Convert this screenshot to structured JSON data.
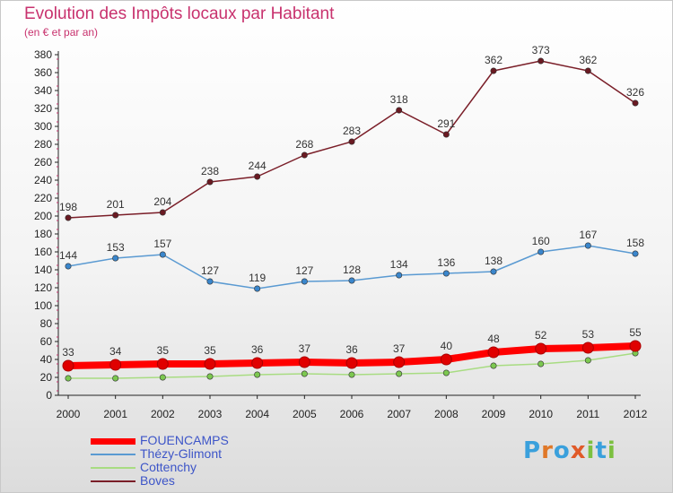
{
  "title": "Evolution des Impôts locaux par Habitant",
  "subtitle": "(en € et par an)",
  "logo": {
    "text": "Proxiti",
    "letters": [
      {
        "ch": "P",
        "color": "#3aa0dc"
      },
      {
        "ch": "r",
        "color": "#e07828"
      },
      {
        "ch": "o",
        "color": "#3aa0dc"
      },
      {
        "ch": "x",
        "color": "#e05a28"
      },
      {
        "ch": "i",
        "color": "#7cc040"
      },
      {
        "ch": "t",
        "color": "#3aa0dc"
      },
      {
        "ch": "i",
        "color": "#7cc040"
      }
    ]
  },
  "chart_data": {
    "type": "line",
    "x": [
      "2000",
      "2001",
      "2002",
      "2003",
      "2004",
      "2005",
      "2006",
      "2007",
      "2008",
      "2009",
      "2010",
      "2011",
      "2012"
    ],
    "ylim": [
      0,
      380
    ],
    "yticks": [
      0,
      20,
      40,
      60,
      80,
      100,
      120,
      140,
      160,
      180,
      200,
      220,
      240,
      260,
      280,
      300,
      320,
      340,
      360,
      380
    ],
    "grid": false,
    "legend_position": "bottom-left",
    "series": [
      {
        "name": "Boves",
        "color": "#7a1e28",
        "marker": "#6a1a22",
        "values": [
          198,
          201,
          204,
          238,
          244,
          268,
          283,
          318,
          291,
          362,
          373,
          362,
          326
        ],
        "show_labels": true
      },
      {
        "name": "Thézy-Glimont",
        "color": "#5a9ad2",
        "marker": "#3a86cc",
        "values": [
          144,
          153,
          157,
          127,
          119,
          127,
          128,
          134,
          136,
          138,
          160,
          167,
          158
        ],
        "show_labels": true
      },
      {
        "name": "Cottenchy",
        "color": "#a8dc82",
        "marker": "#7cc850",
        "values": [
          19,
          19,
          20,
          21,
          23,
          24,
          23,
          24,
          25,
          33,
          35,
          39,
          47
        ],
        "show_labels": false
      },
      {
        "name": "FOUENCAMPS",
        "color": "#ff0000",
        "marker": "#e00000",
        "values": [
          33,
          34,
          35,
          35,
          36,
          37,
          36,
          37,
          40,
          48,
          52,
          53,
          55
        ],
        "show_labels": true
      }
    ]
  },
  "legend": [
    {
      "name": "FOUENCAMPS",
      "color": "#ff0000"
    },
    {
      "name": "Thézy-Glimont",
      "color": "#5a9ad2"
    },
    {
      "name": "Cottenchy",
      "color": "#a8dc82"
    },
    {
      "name": "Boves",
      "color": "#7a1e28"
    }
  ]
}
